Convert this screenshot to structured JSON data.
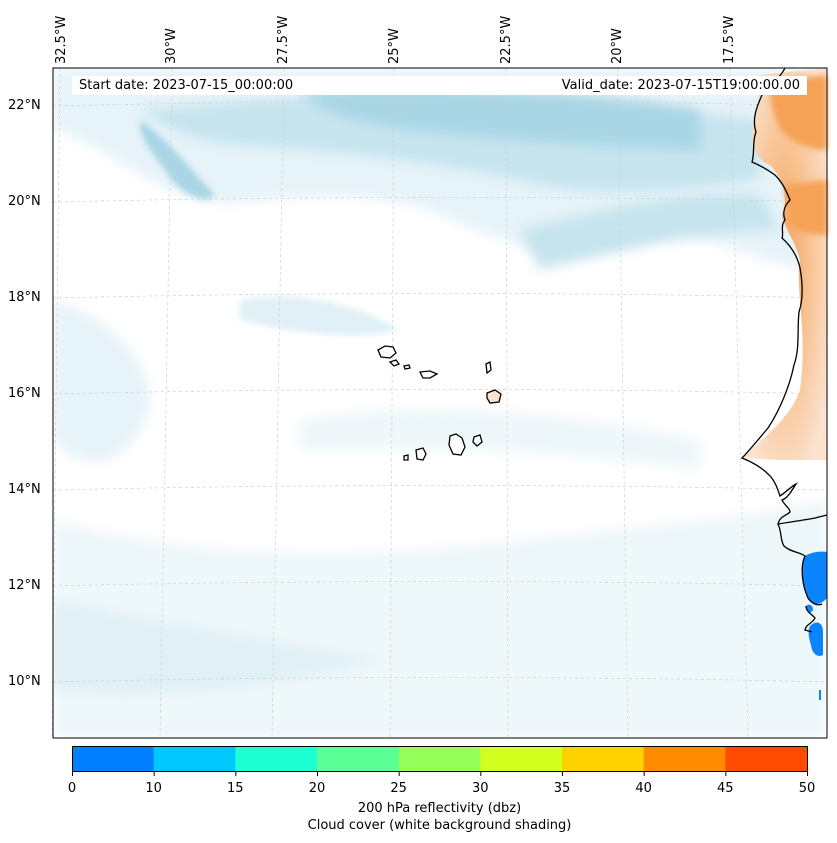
{
  "map": {
    "start_date": "Start date: 2023-07-15_00:00:00",
    "valid_date": "Valid_date: 2023-07-15T19:00:00.00",
    "lon_labels": [
      "32.5°W",
      "30°W",
      "27.5°W",
      "25°W",
      "22.5°W",
      "20°W",
      "17.5°W"
    ],
    "lat_labels": [
      "22°N",
      "20°N",
      "18°N",
      "16°N",
      "14°N",
      "12°N",
      "10°N"
    ],
    "colors": {
      "cloud_light": "#e6f3f8",
      "cloud_mid": "#c6e4ee",
      "cloud_dark": "#a9d6e5",
      "land_warm": "#f5a257",
      "land_pale": "#fbe3cf",
      "precip": "#0a84ff"
    }
  },
  "colorbar": {
    "ticks": [
      "0",
      "10",
      "15",
      "20",
      "25",
      "30",
      "35",
      "40",
      "45",
      "50"
    ],
    "colors": [
      "#0080ff",
      "#00c8ff",
      "#1effd2",
      "#5aff96",
      "#96ff5a",
      "#d2ff1e",
      "#ffd200",
      "#ff8c00",
      "#ff4b00"
    ],
    "label": "200 hPa reflectivity (dbz)",
    "sublabel": "Cloud cover (white background shading)"
  }
}
